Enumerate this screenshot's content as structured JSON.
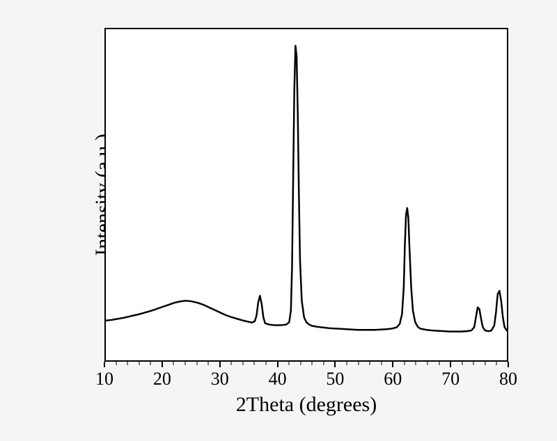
{
  "xrd_chart": {
    "type": "line",
    "xlabel": "2Theta (degrees)",
    "ylabel": "Intensity (a.u.)",
    "xlim": [
      10,
      80
    ],
    "ylim": [
      0,
      100
    ],
    "x_ticks": [
      10,
      20,
      30,
      40,
      50,
      60,
      70,
      80
    ],
    "x_tick_labels": [
      "10",
      "20",
      "30",
      "40",
      "50",
      "60",
      "70",
      "80"
    ],
    "x_minor_tick_step": 2,
    "background_color": "#ffffff",
    "page_background": "#f5f5f5",
    "border_color": "#000000",
    "border_width": 2,
    "line_color": "#000000",
    "line_width": 2.5,
    "label_fontsize": 30,
    "tick_fontsize": 26,
    "font_family": "Times New Roman",
    "data": [
      [
        10,
        12
      ],
      [
        11,
        12.2
      ],
      [
        12,
        12.5
      ],
      [
        13,
        12.8
      ],
      [
        14,
        13.2
      ],
      [
        15,
        13.6
      ],
      [
        16,
        14.0
      ],
      [
        17,
        14.5
      ],
      [
        18,
        15.0
      ],
      [
        19,
        15.6
      ],
      [
        20,
        16.2
      ],
      [
        21,
        16.8
      ],
      [
        22,
        17.4
      ],
      [
        23,
        17.8
      ],
      [
        24,
        18.0
      ],
      [
        25,
        17.8
      ],
      [
        26,
        17.4
      ],
      [
        27,
        16.8
      ],
      [
        28,
        16.0
      ],
      [
        29,
        15.2
      ],
      [
        30,
        14.4
      ],
      [
        31,
        13.6
      ],
      [
        32,
        13.0
      ],
      [
        33,
        12.5
      ],
      [
        34,
        12.0
      ],
      [
        35,
        11.6
      ],
      [
        35.5,
        11.4
      ],
      [
        36.0,
        11.8
      ],
      [
        36.3,
        13.5
      ],
      [
        36.6,
        17.5
      ],
      [
        36.9,
        19.5
      ],
      [
        37.2,
        17.0
      ],
      [
        37.5,
        13.0
      ],
      [
        37.8,
        11.2
      ],
      [
        38.5,
        10.8
      ],
      [
        39.5,
        10.6
      ],
      [
        40.5,
        10.6
      ],
      [
        41.5,
        10.8
      ],
      [
        42.0,
        11.5
      ],
      [
        42.3,
        15.0
      ],
      [
        42.5,
        28.0
      ],
      [
        42.7,
        55.0
      ],
      [
        42.9,
        82.0
      ],
      [
        43.1,
        95.0
      ],
      [
        43.3,
        92.0
      ],
      [
        43.5,
        75.0
      ],
      [
        43.7,
        50.0
      ],
      [
        43.9,
        30.0
      ],
      [
        44.2,
        18.0
      ],
      [
        44.6,
        13.0
      ],
      [
        45.0,
        11.5
      ],
      [
        45.5,
        10.8
      ],
      [
        46,
        10.4
      ],
      [
        47,
        10.1
      ],
      [
        48,
        9.9
      ],
      [
        49,
        9.7
      ],
      [
        50,
        9.6
      ],
      [
        51,
        9.5
      ],
      [
        52,
        9.4
      ],
      [
        53,
        9.3
      ],
      [
        54,
        9.2
      ],
      [
        55,
        9.2
      ],
      [
        56,
        9.2
      ],
      [
        57,
        9.2
      ],
      [
        58,
        9.3
      ],
      [
        59,
        9.4
      ],
      [
        60,
        9.6
      ],
      [
        60.8,
        10.0
      ],
      [
        61.3,
        11.0
      ],
      [
        61.7,
        14.0
      ],
      [
        62.0,
        22.0
      ],
      [
        62.2,
        35.0
      ],
      [
        62.4,
        44.0
      ],
      [
        62.6,
        46.0
      ],
      [
        62.8,
        43.0
      ],
      [
        63.0,
        34.0
      ],
      [
        63.3,
        22.0
      ],
      [
        63.6,
        15.0
      ],
      [
        64.0,
        11.5
      ],
      [
        64.5,
        10.0
      ],
      [
        65,
        9.5
      ],
      [
        66,
        9.2
      ],
      [
        67,
        9.0
      ],
      [
        68,
        8.9
      ],
      [
        69,
        8.8
      ],
      [
        70,
        8.7
      ],
      [
        71,
        8.7
      ],
      [
        72,
        8.7
      ],
      [
        73,
        8.8
      ],
      [
        73.8,
        9.0
      ],
      [
        74.3,
        10.0
      ],
      [
        74.6,
        13.0
      ],
      [
        74.9,
        16.0
      ],
      [
        75.2,
        15.5
      ],
      [
        75.5,
        12.5
      ],
      [
        75.8,
        10.0
      ],
      [
        76.2,
        9.0
      ],
      [
        76.8,
        8.8
      ],
      [
        77.3,
        9.0
      ],
      [
        77.8,
        10.5
      ],
      [
        78.1,
        14.5
      ],
      [
        78.4,
        20.0
      ],
      [
        78.7,
        21.0
      ],
      [
        79.0,
        18.0
      ],
      [
        79.3,
        13.0
      ],
      [
        79.6,
        10.0
      ],
      [
        80,
        9.0
      ]
    ]
  }
}
